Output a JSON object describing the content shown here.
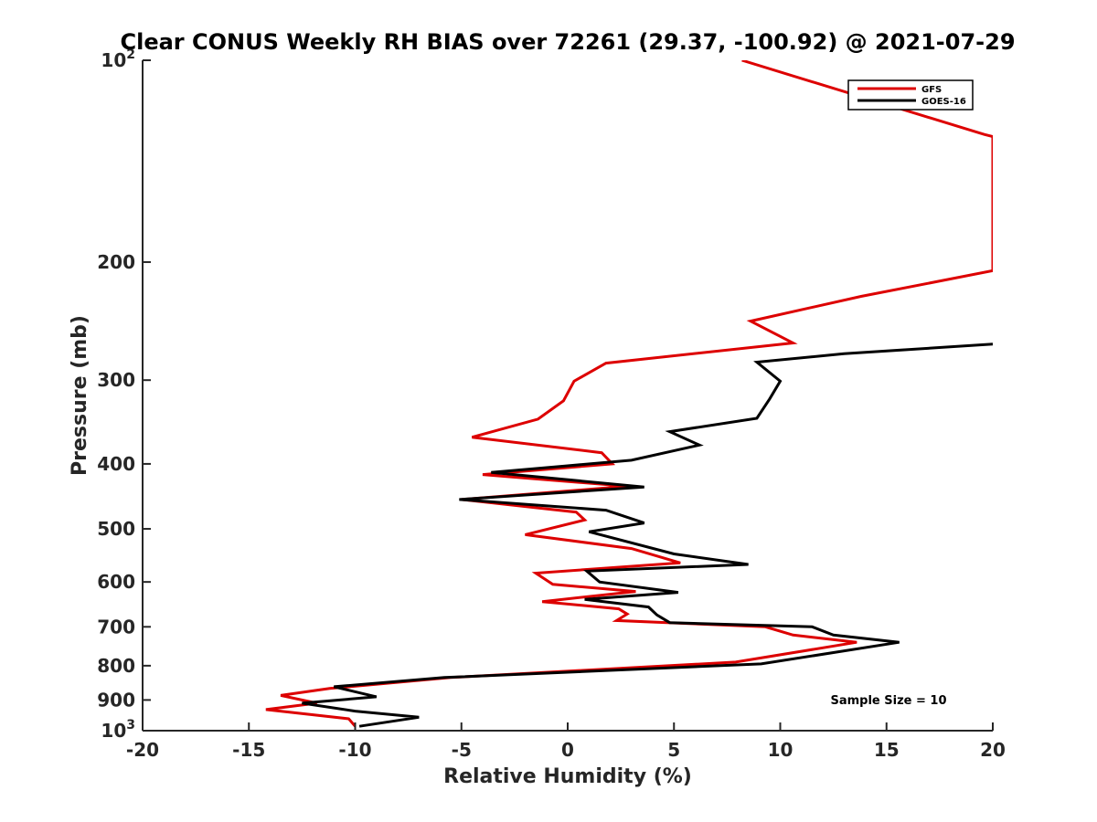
{
  "chart_data": {
    "type": "line",
    "title": "Clear CONUS Weekly RH BIAS over 72261 (29.37, -100.92) @ 2021-07-29",
    "xlabel": "Relative Humidity (%)",
    "ylabel": "Pressure (mb)",
    "xlim": [
      -20,
      20
    ],
    "ylim": [
      100,
      1000
    ],
    "yscale": "log",
    "y_reversed": true,
    "grid": false,
    "legend_position": "top-right",
    "x_ticks": [
      "-20",
      "-15",
      "-10",
      "-5",
      "0",
      "5",
      "10",
      "15",
      "20"
    ],
    "x_tick_values": [
      -20,
      -15,
      -10,
      -5,
      0,
      5,
      10,
      15,
      20
    ],
    "y_ticks": [
      {
        "value": 100,
        "base": "10",
        "exp": "2"
      },
      {
        "value": 200,
        "label": "200"
      },
      {
        "value": 300,
        "label": "300"
      },
      {
        "value": 400,
        "label": "400"
      },
      {
        "value": 500,
        "label": "500"
      },
      {
        "value": 600,
        "label": "600"
      },
      {
        "value": 700,
        "label": "700"
      },
      {
        "value": 800,
        "label": "800"
      },
      {
        "value": 900,
        "label": "900"
      },
      {
        "value": 1000,
        "base": "10",
        "exp": "3"
      }
    ],
    "annotation": "Sample Size = 10",
    "series": [
      {
        "name": "GFS",
        "color": "#dd0000",
        "points": [
          [
            8.2,
            100
          ],
          [
            19.6,
            129
          ],
          [
            20.0,
            130
          ],
          [
            20.0,
            206
          ],
          [
            13.8,
            225
          ],
          [
            8.6,
            245
          ],
          [
            10.6,
            264
          ],
          [
            1.8,
            283
          ],
          [
            0.3,
            301
          ],
          [
            -0.2,
            322
          ],
          [
            -1.4,
            343
          ],
          [
            -4.5,
            365
          ],
          [
            1.6,
            385
          ],
          [
            2.1,
            400
          ],
          [
            -4.0,
            415
          ],
          [
            2.8,
            432
          ],
          [
            -5.0,
            452
          ],
          [
            0.4,
            472
          ],
          [
            0.8,
            485
          ],
          [
            -2.0,
            510
          ],
          [
            3.0,
            535
          ],
          [
            5.3,
            562
          ],
          [
            -1.5,
            582
          ],
          [
            -0.7,
            605
          ],
          [
            3.2,
            620
          ],
          [
            -1.2,
            642
          ],
          [
            2.4,
            658
          ],
          [
            2.8,
            670
          ],
          [
            2.3,
            685
          ],
          [
            9.3,
            700
          ],
          [
            10.6,
            720
          ],
          [
            13.6,
            738
          ],
          [
            7.9,
            790
          ],
          [
            -5.5,
            833
          ],
          [
            -11.2,
            865
          ],
          [
            -13.5,
            886
          ],
          [
            -11.8,
            910
          ],
          [
            -14.2,
            930
          ],
          [
            -10.3,
            960
          ],
          [
            -10.0,
            985
          ]
        ]
      },
      {
        "name": "GOES-16",
        "color": "#000000",
        "points": [
          [
            20.0,
            265
          ],
          [
            13.0,
            274
          ],
          [
            8.9,
            282
          ],
          [
            10.0,
            301
          ],
          [
            9.5,
            320
          ],
          [
            8.9,
            342
          ],
          [
            4.8,
            358
          ],
          [
            6.2,
            375
          ],
          [
            3.0,
            395
          ],
          [
            -3.6,
            412
          ],
          [
            3.6,
            433
          ],
          [
            -5.1,
            452
          ],
          [
            1.8,
            469
          ],
          [
            3.6,
            490
          ],
          [
            1.0,
            505
          ],
          [
            5.0,
            545
          ],
          [
            8.5,
            565
          ],
          [
            0.9,
            578
          ],
          [
            1.5,
            600
          ],
          [
            5.2,
            622
          ],
          [
            0.8,
            637
          ],
          [
            3.8,
            654
          ],
          [
            4.2,
            672
          ],
          [
            4.8,
            690
          ],
          [
            11.5,
            700
          ],
          [
            12.5,
            720
          ],
          [
            15.6,
            738
          ],
          [
            9.1,
            795
          ],
          [
            -5.8,
            833
          ],
          [
            -11.0,
            860
          ],
          [
            -9.0,
            890
          ],
          [
            -12.5,
            910
          ],
          [
            -10.0,
            935
          ],
          [
            -7.0,
            955
          ],
          [
            -9.8,
            985
          ]
        ]
      }
    ]
  }
}
